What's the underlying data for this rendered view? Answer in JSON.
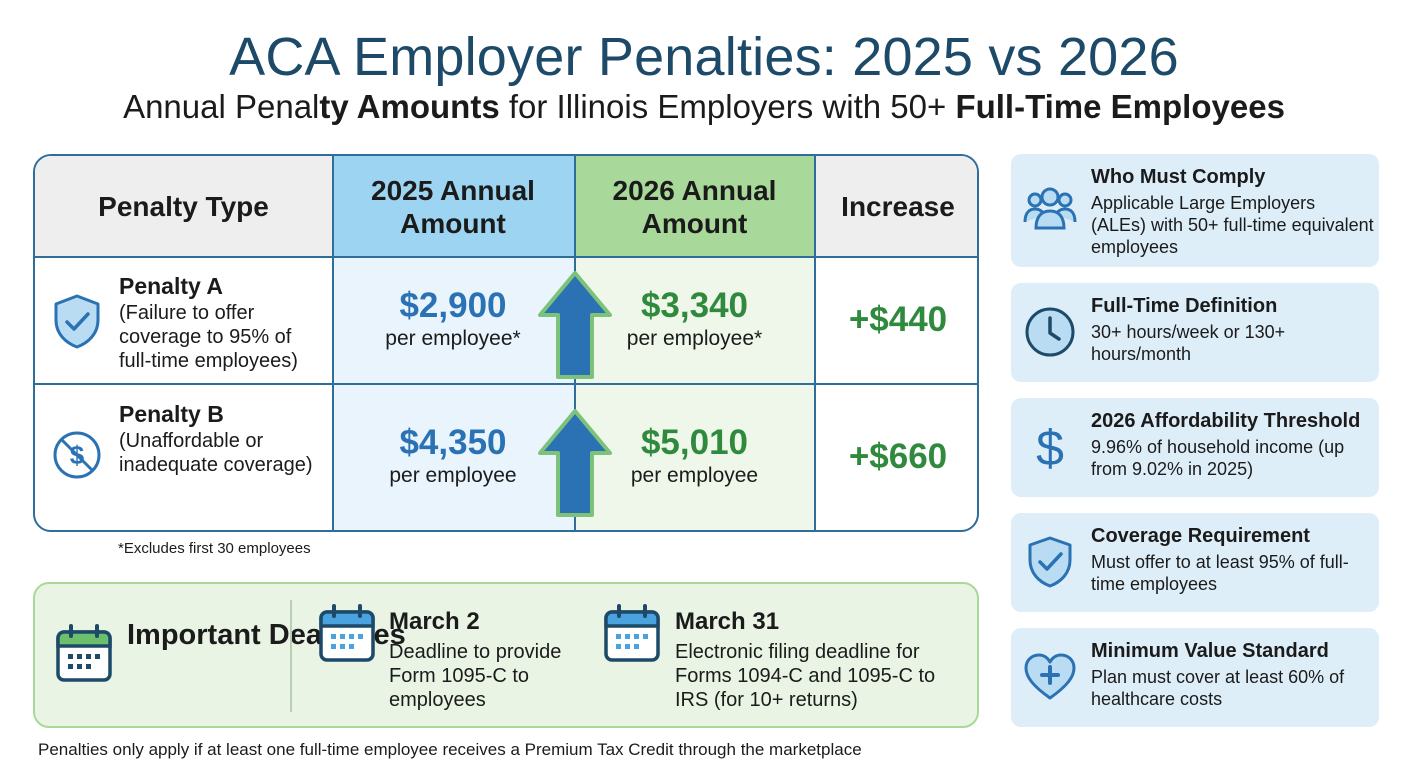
{
  "header": {
    "title": "ACA Employer Penalties: 2025 vs 2026",
    "subtitle_part1": "Annual Penal",
    "subtitle_part2": "ty Amounts",
    "subtitle_part3": " for Illinois Employers with 50+ ",
    "subtitle_part4": "Full-Time Employees"
  },
  "table": {
    "headers": {
      "type": "Penalty Type",
      "y2025": "2025 Annual Amount",
      "y2026": "2026 Annual Amount",
      "increase": "Increase"
    },
    "rows": [
      {
        "name": "Penalty A",
        "desc": "(Failure to offer coverage to 95% of full-time employees)",
        "amount_2025": "$2,900",
        "unit_2025": "per employee*",
        "amount_2026": "$3,340",
        "unit_2026": "per employee*",
        "increase": "+$440",
        "icon": "shield-check-icon"
      },
      {
        "name": "Penalty B",
        "desc": "(Unaffordable or inadequate coverage)",
        "amount_2025": "$4,350",
        "unit_2025": "per employee",
        "amount_2026": "$5,010",
        "unit_2026": "per employee",
        "increase": "+$660",
        "icon": "no-dollar-icon"
      }
    ],
    "footnote": "*Excludes first 30 employees"
  },
  "deadlines": {
    "title": "Important Deadlines",
    "items": [
      {
        "date": "March 2",
        "desc": "Deadline to provide Form 1095-C to employees"
      },
      {
        "date": "March 31",
        "desc": "Electronic filing deadline for Forms 1094-C and 1095-C to IRS (for 10+ returns)"
      }
    ]
  },
  "cards": [
    {
      "title": "Who Must Comply",
      "text": "Applicable Large Employers (ALEs) with 50+ full-time equivalent employees",
      "icon": "people-icon"
    },
    {
      "title": "Full-Time Definition",
      "text": "30+ hours/week or 130+ hours/month",
      "icon": "clock-icon"
    },
    {
      "title": "2026 Affordability Threshold",
      "text": "9.96% of household income (up from 9.02% in 2025)",
      "icon": "dollar-icon"
    },
    {
      "title": "Coverage Requirement",
      "text": "Must offer to at least 95% of full-time employees",
      "icon": "shield-check-icon"
    },
    {
      "title": "Minimum Value Standard",
      "text": "Plan must cover at least 60% of healthcare costs",
      "icon": "heart-plus-icon"
    }
  ],
  "bottom_note": "Penalties only apply if at least one full-time employee receives a Premium Tax Credit through the marketplace",
  "colors": {
    "title": "#1d4a68",
    "border": "#2f6d9a",
    "blue_amount": "#2a72b4",
    "green_amount": "#2f8a3e",
    "header_2025": "#9dd4f2",
    "header_2026": "#a9d99a",
    "card_bg": "#ddeef9",
    "deadline_bg": "#e9f4e4"
  }
}
